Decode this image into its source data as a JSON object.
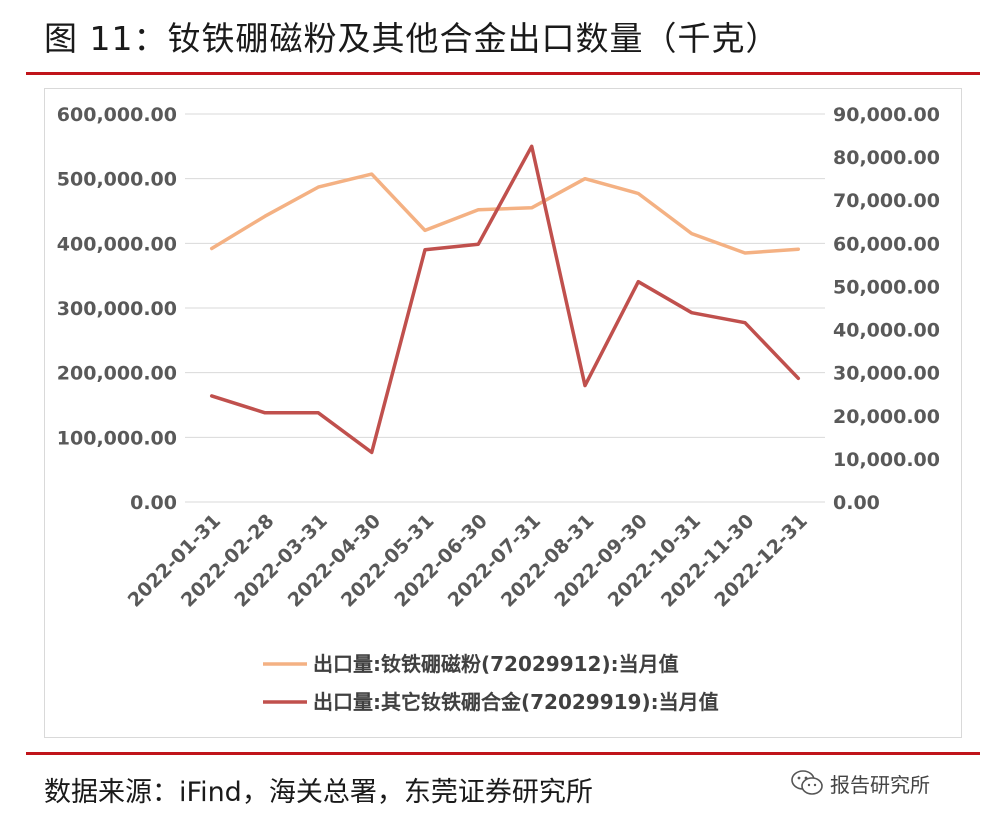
{
  "header": {
    "title": "图 11：钕铁硼磁粉及其他合金出口数量（千克）"
  },
  "footer": {
    "source": "数据来源：iFind，海关总署，东莞证券研究所",
    "watermark": "报告研究所",
    "watermark_icon": "wechat-icon"
  },
  "colors": {
    "accent_rule": "#c0141a",
    "series1": "#f4b183",
    "series2": "#c0504d",
    "grid": "#d9d9d9",
    "axis_text": "#595959"
  },
  "chart_data": {
    "type": "line",
    "title": "",
    "x": [
      "2022-01-31",
      "2022-02-28",
      "2022-03-31",
      "2022-04-30",
      "2022-05-31",
      "2022-06-30",
      "2022-07-31",
      "2022-08-31",
      "2022-09-30",
      "2022-10-31",
      "2022-11-30",
      "2022-12-31"
    ],
    "y_left": {
      "ylim": [
        0,
        600000
      ],
      "ticks": [
        "0.00",
        "100,000.00",
        "200,000.00",
        "300,000.00",
        "400,000.00",
        "500,000.00",
        "600,000.00"
      ]
    },
    "y_right": {
      "ylim": [
        0,
        90000
      ],
      "ticks": [
        "0.00",
        "10,000.00",
        "20,000.00",
        "30,000.00",
        "40,000.00",
        "50,000.00",
        "60,000.00",
        "70,000.00",
        "80,000.00",
        "90,000.00"
      ]
    },
    "series": [
      {
        "name": "出口量:钕铁硼磁粉(72029912):当月值",
        "axis": "left",
        "color": "#f4b183",
        "values": [
          392000,
          442000,
          487000,
          507000,
          420000,
          452000,
          455000,
          500000,
          477000,
          415000,
          385000,
          391000
        ]
      },
      {
        "name": "出口量:其它钕铁硼合金(72029919):当月值",
        "axis": "right",
        "color": "#c0504d",
        "values": [
          24600,
          20700,
          20700,
          11500,
          58500,
          59800,
          82500,
          27000,
          51100,
          43900,
          41600,
          28700
        ]
      }
    ],
    "grid": true,
    "legend_position": "bottom"
  }
}
